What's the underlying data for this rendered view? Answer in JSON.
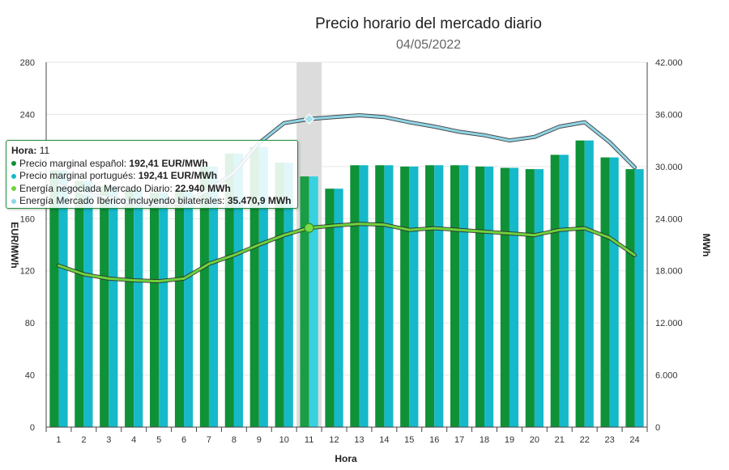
{
  "chart_data": {
    "type": "bar",
    "title": "Precio horario del mercado diario",
    "subtitle": "04/05/2022",
    "xlabel": "Hora",
    "ylabel_left": "EUR/MWh",
    "ylabel_right": "MWh",
    "categories": [
      "1",
      "2",
      "3",
      "4",
      "5",
      "6",
      "7",
      "8",
      "9",
      "10",
      "11",
      "12",
      "13",
      "14",
      "15",
      "16",
      "17",
      "18",
      "19",
      "20",
      "21",
      "22",
      "23",
      "24"
    ],
    "ylim_left": [
      0,
      280
    ],
    "yticks_left": [
      "0",
      "40",
      "80",
      "120",
      "160",
      "200",
      "240",
      "280"
    ],
    "ylim_right": [
      0,
      42000
    ],
    "yticks_right": [
      "0",
      "6.000",
      "12.000",
      "18.000",
      "24.000",
      "30.000",
      "36.000",
      "42.000"
    ],
    "grid": true,
    "highlight_hour": "11",
    "series": [
      {
        "name": "Precio marginal español",
        "axis": "left",
        "kind": "bar",
        "color": "#0f9138",
        "values": [
          197,
          189,
          185,
          182,
          180,
          182,
          200,
          210,
          215,
          203,
          192.41,
          183,
          201,
          201,
          200,
          201,
          201,
          200,
          199,
          198,
          209,
          220,
          207,
          198
        ]
      },
      {
        "name": "Precio marginal portugués",
        "axis": "left",
        "kind": "bar",
        "color": "#16b9c9",
        "values": [
          197,
          189,
          185,
          182,
          180,
          182,
          200,
          210,
          215,
          203,
          192.41,
          183,
          201,
          201,
          200,
          201,
          201,
          200,
          199,
          198,
          209,
          220,
          207,
          198
        ]
      },
      {
        "name": "Energía negociada Mercado Diario",
        "axis": "right",
        "kind": "line",
        "color": "#6fd23c",
        "values": [
          18600,
          17600,
          17100,
          16900,
          16800,
          17100,
          18800,
          19800,
          21000,
          22100,
          22940,
          23200,
          23400,
          23300,
          22700,
          22900,
          22700,
          22500,
          22300,
          22100,
          22700,
          22900,
          21800,
          19800
        ]
      },
      {
        "name": "Energía Mercado Ibérico incluyendo bilaterales",
        "axis": "right",
        "kind": "line",
        "color": "#8fd5e6",
        "values": [
          27900,
          26900,
          26400,
          25800,
          25600,
          25800,
          27300,
          29300,
          32700,
          35000,
          35470.9,
          35700,
          35900,
          35700,
          35100,
          34600,
          34000,
          33600,
          33000,
          33400,
          34600,
          35100,
          32800,
          29900
        ]
      }
    ]
  },
  "tooltip": {
    "label": "Hora:",
    "value": "11",
    "rows": [
      {
        "text": "Precio marginal español: ",
        "value": "192,41 EUR/MWh",
        "color": "#0f9138"
      },
      {
        "text": "Precio marginal portugués: ",
        "value": "192,41 EUR/MWh",
        "color": "#16b9c9"
      },
      {
        "text": "Energía negociada Mercado Diario: ",
        "value": "22.940 MWh",
        "color": "#6fd23c"
      },
      {
        "text": "Energía Mercado Ibérico incluyendo bilaterales: ",
        "value": "35.470,9 MWh",
        "color": "#8fd5e6"
      }
    ]
  }
}
